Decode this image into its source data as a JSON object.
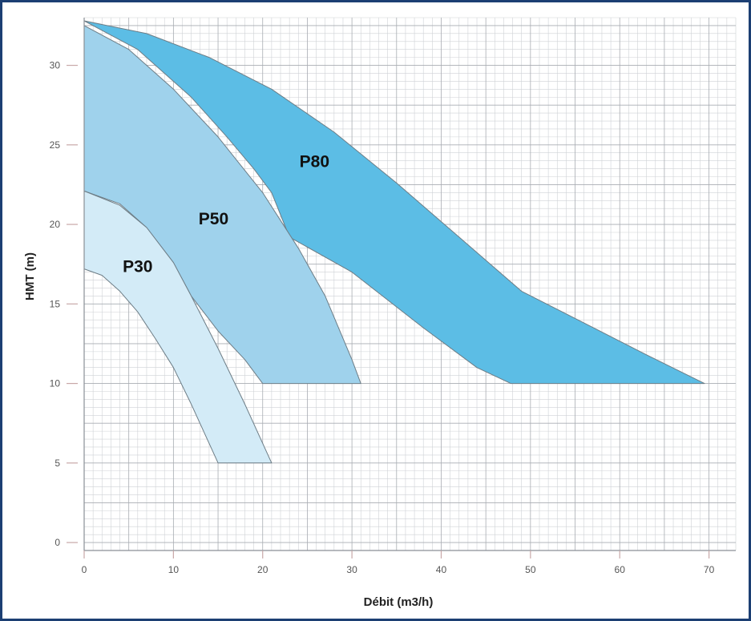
{
  "chart_data": {
    "type": "area",
    "title": "",
    "xlabel": "Débit (m3/h)",
    "ylabel": "HMT (m)",
    "xlim": [
      0,
      73
    ],
    "ylim": [
      -0.5,
      33
    ],
    "x_ticks": [
      0,
      10,
      20,
      30,
      40,
      50,
      60,
      70
    ],
    "y_ticks": [
      0,
      5,
      10,
      15,
      20,
      25,
      30
    ],
    "x_tick_labels": [
      "0",
      "10",
      "20",
      "30",
      "40",
      "50",
      "60",
      "70"
    ],
    "y_tick_labels": [
      "0",
      "5",
      "10",
      "15",
      "20",
      "25",
      "30"
    ],
    "grid": true,
    "series": [
      {
        "name": "P80",
        "color": "#5cbde5",
        "upper_curve": [
          [
            0,
            32.8
          ],
          [
            7,
            32.0
          ],
          [
            14,
            30.5
          ],
          [
            21,
            28.5
          ],
          [
            28,
            25.8
          ],
          [
            35,
            22.6
          ],
          [
            42,
            19.2
          ],
          [
            49,
            15.8
          ],
          [
            56,
            13.8
          ],
          [
            63,
            11.8
          ],
          [
            69.5,
            10.0
          ]
        ],
        "lower_curve": [
          [
            0,
            32.8
          ],
          [
            6,
            31.0
          ],
          [
            12,
            28.0
          ],
          [
            16,
            25.5
          ],
          [
            19,
            23.5
          ],
          [
            21,
            22.0
          ],
          [
            23,
            19.2
          ],
          [
            30,
            17.0
          ],
          [
            38,
            13.5
          ],
          [
            44,
            11.0
          ],
          [
            47.8,
            10.0
          ]
        ],
        "label_pos": [
          25.8,
          23.6
        ]
      },
      {
        "name": "P50",
        "color": "#9fd2ec",
        "upper_curve": [
          [
            0,
            32.5
          ],
          [
            5,
            31.0
          ],
          [
            10,
            28.5
          ],
          [
            15,
            25.5
          ],
          [
            20,
            22.0
          ],
          [
            24,
            18.5
          ],
          [
            27,
            15.5
          ],
          [
            30,
            11.5
          ],
          [
            31,
            10.0
          ]
        ],
        "lower_curve": [
          [
            0,
            22.1
          ],
          [
            4,
            21.3
          ],
          [
            7,
            19.8
          ],
          [
            10,
            17.6
          ],
          [
            12,
            15.5
          ],
          [
            15,
            13.3
          ],
          [
            18,
            11.5
          ],
          [
            20,
            10.0
          ]
        ],
        "label_pos": [
          14.5,
          20.0
        ]
      },
      {
        "name": "P30",
        "color": "#d3ebf7",
        "upper_curve": [
          [
            0,
            22.1
          ],
          [
            4,
            21.2
          ],
          [
            7,
            19.8
          ],
          [
            10,
            17.6
          ],
          [
            12,
            15.5
          ],
          [
            15,
            12.2
          ],
          [
            18,
            8.7
          ],
          [
            21,
            5.0
          ]
        ],
        "lower_curve": [
          [
            0,
            17.2
          ],
          [
            2,
            16.8
          ],
          [
            4,
            15.8
          ],
          [
            6,
            14.5
          ],
          [
            8,
            12.8
          ],
          [
            10,
            11.0
          ],
          [
            12,
            8.7
          ],
          [
            15,
            5.0
          ]
        ],
        "label_pos": [
          6.0,
          17.0
        ]
      }
    ]
  }
}
